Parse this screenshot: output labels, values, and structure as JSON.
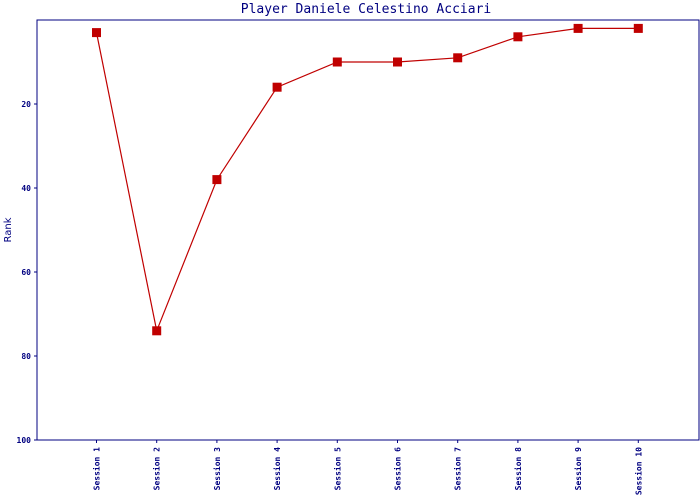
{
  "chart_data": {
    "type": "line",
    "title": "Player Daniele Celestino Acciari",
    "xlabel": "",
    "ylabel": "Rank",
    "y_inverted": true,
    "ylim": [
      100,
      0
    ],
    "yticks": [
      20,
      40,
      60,
      80,
      100
    ],
    "grid": false,
    "legend": "none",
    "categories": [
      "Session 1",
      "Session 2",
      "Session 3",
      "Session 4",
      "Session 5",
      "Session 6",
      "Session 7",
      "Session 8",
      "Session 9",
      "Session 10"
    ],
    "series": [
      {
        "color": "#c00000",
        "values": [
          3,
          74,
          38,
          16,
          10,
          10,
          9,
          4,
          2,
          2
        ]
      }
    ]
  }
}
